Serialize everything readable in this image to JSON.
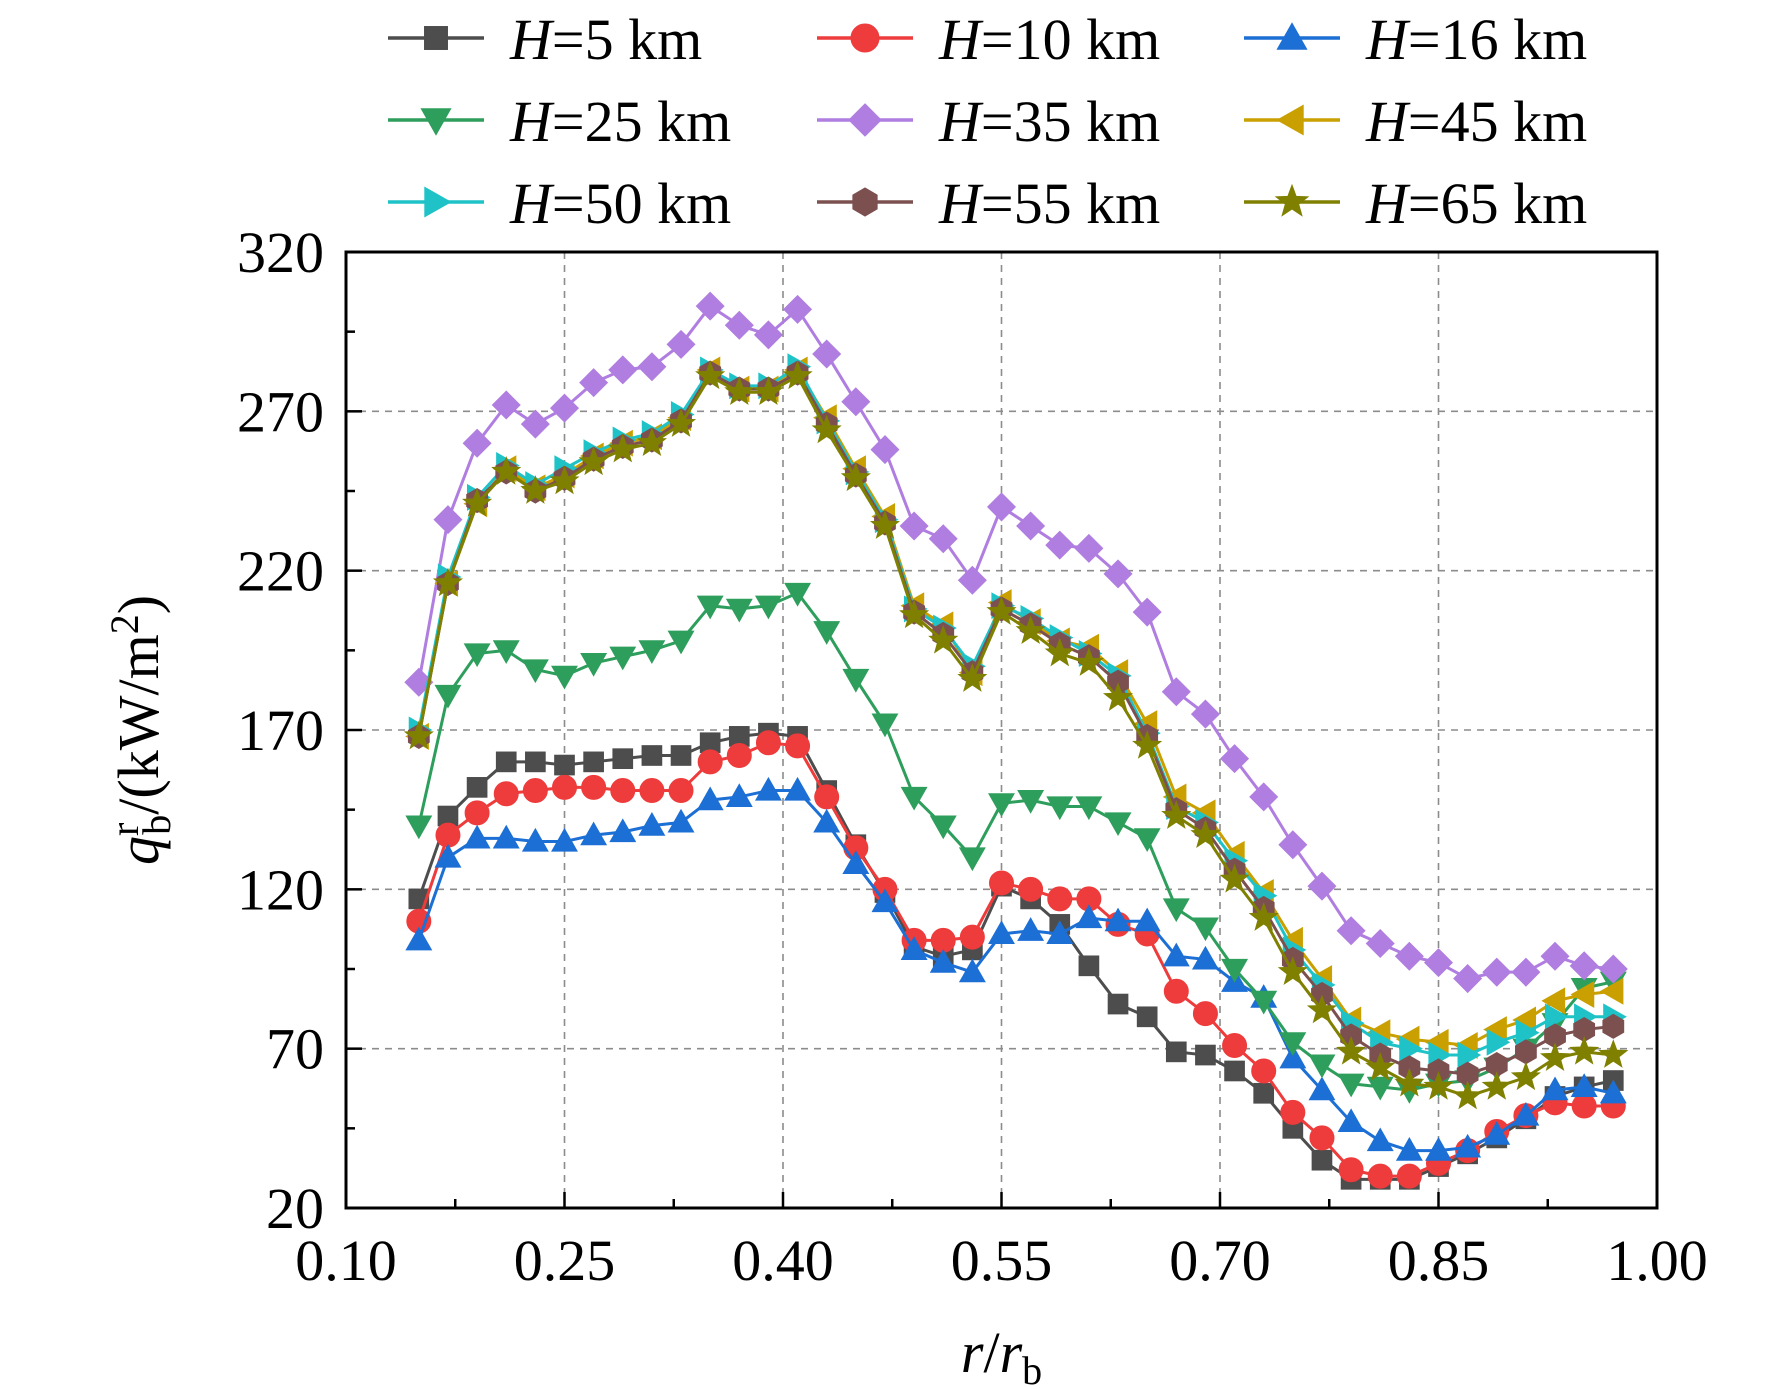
{
  "chart_data": {
    "type": "line",
    "xlabel": {
      "main": "r",
      "sep": "/",
      "main2": "r",
      "sub": "b"
    },
    "ylabel": {
      "main": "q",
      "sup": "r",
      "sub": "b",
      "rest": "/(kW/m",
      "sup2": "2",
      "close": ")"
    },
    "xlim": [
      0.1,
      1.0
    ],
    "ylim": [
      20,
      320
    ],
    "xticks": [
      "0.10",
      "0.25",
      "0.40",
      "0.55",
      "0.70",
      "0.85",
      "1.00"
    ],
    "yticks": [
      "20",
      "70",
      "120",
      "170",
      "220",
      "270",
      "320"
    ],
    "grid": true,
    "legend_position": "top",
    "x": [
      0.15,
      0.17,
      0.19,
      0.21,
      0.23,
      0.25,
      0.27,
      0.29,
      0.31,
      0.33,
      0.35,
      0.37,
      0.39,
      0.41,
      0.43,
      0.45,
      0.47,
      0.49,
      0.51,
      0.53,
      0.55,
      0.57,
      0.59,
      0.61,
      0.63,
      0.65,
      0.67,
      0.69,
      0.71,
      0.73,
      0.75,
      0.77,
      0.79,
      0.81,
      0.83,
      0.85,
      0.87,
      0.89,
      0.91,
      0.93,
      0.95,
      0.97
    ],
    "series": [
      {
        "name_var": "H",
        "name_rest": "=5 km",
        "color": "#4d4d4d",
        "marker": "square",
        "values": [
          117,
          143,
          152,
          160,
          160,
          159,
          160,
          161,
          162,
          162,
          166,
          168,
          169,
          168,
          151,
          134,
          119,
          102,
          99,
          101,
          121,
          117,
          109,
          96,
          84,
          80,
          69,
          68,
          63,
          56,
          45,
          35,
          29,
          29,
          29,
          33,
          37,
          42,
          48,
          55,
          58,
          60
        ]
      },
      {
        "name_var": "H",
        "name_rest": "=10 km",
        "color": "#ee3b3b",
        "marker": "circle",
        "values": [
          110,
          137,
          144,
          150,
          151,
          152,
          152,
          151,
          151,
          151,
          160,
          162,
          166,
          165,
          149,
          133,
          120,
          104,
          104,
          105,
          122,
          120,
          117,
          117,
          109,
          106,
          88,
          81,
          71,
          63,
          50,
          42,
          32,
          30,
          30,
          34,
          38,
          44,
          49,
          53,
          52,
          52
        ]
      },
      {
        "name_var": "H",
        "name_rest": "=16 km",
        "color": "#1c6fd4",
        "marker": "triangle-up",
        "values": [
          104,
          130,
          136,
          136,
          135,
          135,
          137,
          138,
          140,
          141,
          148,
          149,
          151,
          151,
          141,
          128,
          116,
          101,
          97,
          94,
          106,
          107,
          106,
          111,
          110,
          110,
          99,
          98,
          91,
          86,
          67,
          57,
          47,
          41,
          38,
          38,
          39,
          43,
          49,
          57,
          58,
          56
        ]
      },
      {
        "name_var": "H",
        "name_rest": "=25 km",
        "color": "#2e9e5c",
        "marker": "triangle-down",
        "values": [
          140,
          181,
          194,
          195,
          189,
          187,
          191,
          193,
          195,
          198,
          209,
          208,
          209,
          213,
          201,
          186,
          172,
          149,
          140,
          130,
          147,
          148,
          146,
          146,
          141,
          136,
          114,
          108,
          95,
          85,
          72,
          65,
          59,
          58,
          57,
          59,
          60,
          64,
          70,
          78,
          89,
          91
        ]
      },
      {
        "name_var": "H",
        "name_rest": "=35 km",
        "color": "#b07de0",
        "marker": "diamond",
        "values": [
          185,
          236,
          260,
          272,
          266,
          271,
          279,
          283,
          284,
          291,
          303,
          297,
          294,
          302,
          288,
          273,
          258,
          234,
          230,
          217,
          240,
          234,
          228,
          227,
          219,
          207,
          182,
          175,
          161,
          149,
          134,
          121,
          107,
          103,
          99,
          97,
          92,
          94,
          94,
          99,
          96,
          95
        ]
      },
      {
        "name_var": "H",
        "name_rest": "=45 km",
        "color": "#c9a000",
        "marker": "triangle-left",
        "values": [
          168,
          216,
          241,
          252,
          246,
          250,
          256,
          260,
          262,
          268,
          283,
          277,
          277,
          283,
          268,
          252,
          237,
          209,
          203,
          188,
          210,
          204,
          198,
          196,
          188,
          172,
          149,
          144,
          131,
          119,
          104,
          92,
          79,
          75,
          73,
          72,
          71,
          76,
          79,
          85,
          87,
          88
        ]
      },
      {
        "name_var": "H",
        "name_rest": "=50 km",
        "color": "#1fc3c7",
        "marker": "triangle-right",
        "values": [
          170,
          218,
          243,
          253,
          247,
          252,
          257,
          261,
          263,
          269,
          283,
          278,
          278,
          284,
          267,
          251,
          236,
          208,
          202,
          190,
          209,
          205,
          199,
          194,
          187,
          169,
          146,
          141,
          129,
          118,
          101,
          90,
          78,
          72,
          70,
          68,
          68,
          72,
          75,
          80,
          80,
          80
        ]
      },
      {
        "name_var": "H",
        "name_rest": "=55 km",
        "color": "#7d5050",
        "marker": "hexagon",
        "values": [
          168,
          216,
          242,
          251,
          245,
          249,
          255,
          259,
          261,
          267,
          282,
          277,
          277,
          282,
          266,
          250,
          235,
          207,
          200,
          188,
          208,
          203,
          197,
          193,
          185,
          168,
          145,
          139,
          126,
          114,
          98,
          87,
          74,
          68,
          64,
          63,
          62,
          65,
          69,
          74,
          76,
          77
        ]
      },
      {
        "name_var": "H",
        "name_rest": "=65 km",
        "color": "#808000",
        "marker": "star",
        "values": [
          168,
          216,
          241,
          251,
          245,
          248,
          254,
          258,
          260,
          266,
          281,
          276,
          276,
          281,
          264,
          249,
          234,
          206,
          198,
          186,
          207,
          201,
          194,
          191,
          180,
          165,
          143,
          137,
          123,
          111,
          94,
          82,
          69,
          64,
          59,
          58,
          55,
          58,
          61,
          67,
          69,
          68
        ]
      }
    ]
  }
}
